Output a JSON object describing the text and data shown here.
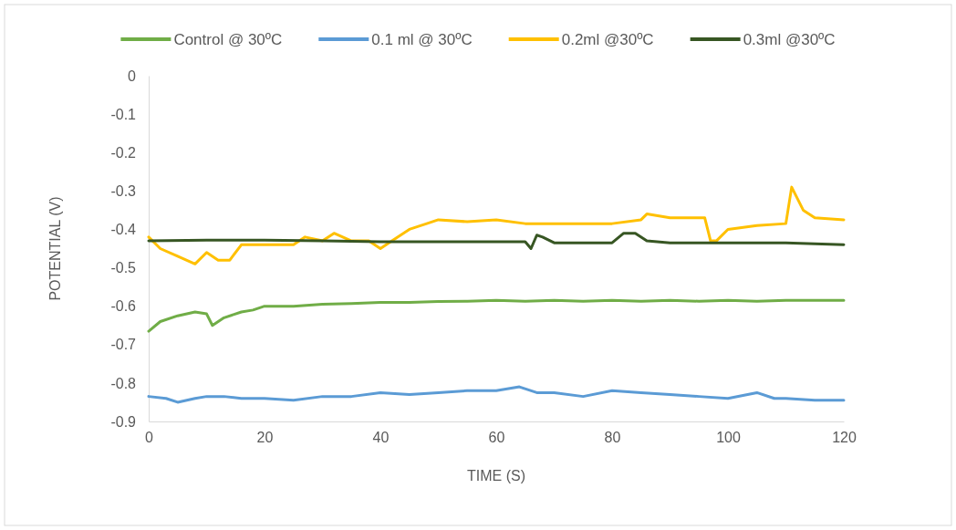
{
  "chart_data": {
    "type": "line",
    "xlabel": "TIME (S)",
    "ylabel": "POTENTIAL (V)",
    "xlim": [
      0,
      120
    ],
    "xticks": [
      0,
      20,
      40,
      60,
      80,
      100,
      120
    ],
    "ylim": [
      -0.9,
      0
    ],
    "yticks": [
      -0.9,
      -0.8,
      -0.7,
      -0.6,
      -0.5,
      -0.4,
      -0.3,
      -0.2,
      -0.1,
      0
    ],
    "grid": false,
    "legend": "top",
    "marker": "none",
    "line_style": "solid",
    "series": [
      {
        "name": "Control @ 30ºC",
        "color": "#70ad47",
        "x": [
          0,
          2,
          5,
          8,
          10,
          11,
          13,
          16,
          18,
          20,
          25,
          30,
          35,
          40,
          45,
          50,
          55,
          60,
          65,
          70,
          75,
          80,
          85,
          90,
          95,
          100,
          105,
          110,
          115,
          120
        ],
        "values": [
          -0.665,
          -0.64,
          -0.625,
          -0.615,
          -0.62,
          -0.65,
          -0.63,
          -0.615,
          -0.61,
          -0.6,
          -0.6,
          -0.595,
          -0.593,
          -0.59,
          -0.59,
          -0.588,
          -0.587,
          -0.585,
          -0.587,
          -0.585,
          -0.587,
          -0.585,
          -0.587,
          -0.585,
          -0.587,
          -0.585,
          -0.587,
          -0.585,
          -0.585,
          -0.585
        ]
      },
      {
        "name": "0.1 ml @ 30ºC",
        "color": "#5b9bd5",
        "x": [
          0,
          3,
          5,
          8,
          10,
          13,
          16,
          20,
          25,
          30,
          35,
          40,
          45,
          50,
          55,
          60,
          64,
          67,
          70,
          75,
          80,
          85,
          90,
          95,
          100,
          105,
          108,
          110,
          115,
          118,
          120
        ],
        "values": [
          -0.835,
          -0.84,
          -0.85,
          -0.84,
          -0.835,
          -0.835,
          -0.84,
          -0.84,
          -0.845,
          -0.835,
          -0.835,
          -0.825,
          -0.83,
          -0.825,
          -0.82,
          -0.82,
          -0.81,
          -0.825,
          -0.825,
          -0.835,
          -0.82,
          -0.825,
          -0.83,
          -0.835,
          -0.84,
          -0.825,
          -0.84,
          -0.84,
          -0.845,
          -0.845,
          -0.845
        ]
      },
      {
        "name": "0.2ml @30ºC",
        "color": "#ffc000",
        "x": [
          0,
          2,
          5,
          8,
          10,
          12,
          14,
          16,
          20,
          25,
          27,
          30,
          32,
          35,
          38,
          40,
          42,
          45,
          48,
          50,
          55,
          60,
          65,
          70,
          75,
          80,
          85,
          86,
          90,
          96,
          97,
          98,
          100,
          105,
          110,
          111,
          113,
          115,
          120
        ],
        "values": [
          -0.42,
          -0.45,
          -0.47,
          -0.49,
          -0.46,
          -0.48,
          -0.48,
          -0.44,
          -0.44,
          -0.44,
          -0.42,
          -0.43,
          -0.41,
          -0.43,
          -0.43,
          -0.45,
          -0.43,
          -0.4,
          -0.385,
          -0.375,
          -0.38,
          -0.375,
          -0.385,
          -0.385,
          -0.385,
          -0.385,
          -0.375,
          -0.36,
          -0.37,
          -0.37,
          -0.43,
          -0.43,
          -0.4,
          -0.39,
          -0.385,
          -0.29,
          -0.35,
          -0.37,
          -0.375
        ]
      },
      {
        "name": "0.3ml @30ºC",
        "color": "#375623",
        "x": [
          0,
          10,
          20,
          30,
          40,
          50,
          60,
          65,
          66,
          67,
          68,
          70,
          75,
          80,
          82,
          84,
          86,
          90,
          100,
          110,
          120
        ],
        "values": [
          -0.43,
          -0.428,
          -0.428,
          -0.43,
          -0.432,
          -0.432,
          -0.432,
          -0.432,
          -0.45,
          -0.415,
          -0.42,
          -0.435,
          -0.435,
          -0.435,
          -0.41,
          -0.41,
          -0.43,
          -0.435,
          -0.435,
          -0.435,
          -0.44
        ]
      }
    ]
  }
}
